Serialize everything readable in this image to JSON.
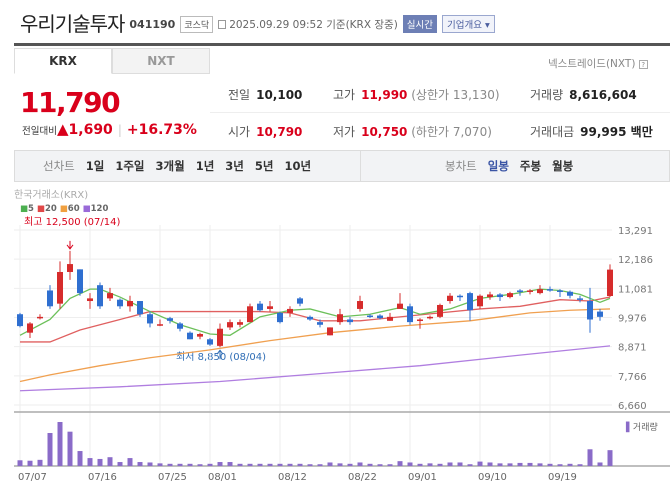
{
  "header": {
    "title": "우리기술투자",
    "code": "041190",
    "market": "코스닥",
    "datetime": "2025.09.29 09:52",
    "basis": "기준(KRX 장중)",
    "realtime": "실시간",
    "company_info": "기업개요 ▾"
  },
  "tabs": [
    {
      "label": "KRX",
      "active": true
    },
    {
      "label": "NXT",
      "active": false
    }
  ],
  "nxt_link": "넥스트레이드(NXT)",
  "quote": {
    "price": "11,790",
    "change_label": "전일대비",
    "change_arrow": "▲",
    "change": "1,690",
    "change_pct": "+16.73%",
    "prev_label": "전일",
    "prev": "10,100",
    "high_label": "고가",
    "high": "11,990",
    "upper_limit": "(상한가 13,130)",
    "volume_label": "거래량",
    "volume": "8,616,604",
    "open_label": "시가",
    "open": "10,790",
    "low_label": "저가",
    "low": "10,750",
    "lower_limit": "(하한가 7,070)",
    "amount_label": "거래대금",
    "amount": "99,995 백만"
  },
  "period_bar": {
    "line_label": "선차트",
    "line_periods": [
      "1일",
      "1주일",
      "3개월",
      "1년",
      "3년",
      "5년",
      "10년"
    ],
    "candle_label": "봉차트",
    "candle_periods": [
      "일봉",
      "주봉",
      "월봉"
    ],
    "active_candle": "일봉"
  },
  "chart_data": {
    "type": "candlestick",
    "source": "한국거래소(KRX)",
    "legend": [
      {
        "name": "5",
        "color": "#4caf50"
      },
      {
        "name": "20",
        "color": "#e04848"
      },
      {
        "name": "60",
        "color": "#f0a040"
      },
      {
        "name": "120",
        "color": "#9a6ad8"
      }
    ],
    "y_ticks": [
      "13,291",
      "12,186",
      "11,081",
      "9,976",
      "8,871",
      "7,766",
      "6,660"
    ],
    "ylim": [
      6660,
      13291
    ],
    "x_ticks": [
      {
        "label": "07/07",
        "i": 0
      },
      {
        "label": "07/16",
        "i": 7
      },
      {
        "label": "07/25",
        "i": 14
      },
      {
        "label": "08/01",
        "i": 19
      },
      {
        "label": "08/12",
        "i": 26
      },
      {
        "label": "08/22",
        "i": 33
      },
      {
        "label": "09/01",
        "i": 39
      },
      {
        "label": "09/10",
        "i": 46
      },
      {
        "label": "09/19",
        "i": 53
      }
    ],
    "high_note": {
      "text": "최고 12,500 (07/14)",
      "i": 5,
      "value": 12500
    },
    "low_note": {
      "text": "최저 8,850 (08/04)",
      "i": 20,
      "value": 8850
    },
    "volume_label": "거래량",
    "candles": [
      [
        10100,
        10150,
        9600,
        9650
      ],
      [
        9400,
        9800,
        9200,
        9750
      ],
      [
        9950,
        10100,
        9900,
        10000
      ],
      [
        11000,
        11200,
        10300,
        10400
      ],
      [
        10500,
        12100,
        10300,
        11700
      ],
      [
        11700,
        12500,
        11400,
        12000
      ],
      [
        11800,
        11800,
        10800,
        10900
      ],
      [
        10600,
        10900,
        10300,
        10700
      ],
      [
        11200,
        11300,
        10300,
        10400
      ],
      [
        10700,
        11100,
        10600,
        10900
      ],
      [
        10650,
        10700,
        10300,
        10400
      ],
      [
        10400,
        10800,
        10200,
        10600
      ],
      [
        10600,
        10600,
        10000,
        10100
      ],
      [
        10100,
        10200,
        9600,
        9750
      ],
      [
        9700,
        9900,
        9650,
        9720
      ],
      [
        9950,
        10000,
        9750,
        9850
      ],
      [
        9750,
        9800,
        9450,
        9550
      ],
      [
        9400,
        9450,
        9150,
        9150
      ],
      [
        9250,
        9400,
        9150,
        9350
      ],
      [
        9150,
        9200,
        8900,
        8950
      ],
      [
        8900,
        9750,
        8850,
        9550
      ],
      [
        9600,
        9900,
        9500,
        9800
      ],
      [
        9700,
        9900,
        9600,
        9800
      ],
      [
        9800,
        10500,
        9800,
        10400
      ],
      [
        10500,
        10600,
        10200,
        10250
      ],
      [
        10300,
        10600,
        10200,
        10400
      ],
      [
        10150,
        10200,
        9750,
        9800
      ],
      [
        10150,
        10400,
        10000,
        10300
      ],
      [
        10700,
        10750,
        10400,
        10500
      ],
      [
        10000,
        10050,
        9850,
        9900
      ],
      [
        9800,
        9900,
        9600,
        9700
      ],
      [
        9300,
        9600,
        9300,
        9600
      ],
      [
        9800,
        10300,
        9700,
        10100
      ],
      [
        9900,
        10000,
        9700,
        9800
      ],
      [
        10300,
        10800,
        10200,
        10600
      ],
      [
        10050,
        10100,
        9950,
        10000
      ],
      [
        10050,
        10100,
        9900,
        9950
      ],
      [
        9850,
        10150,
        9850,
        10000
      ],
      [
        10300,
        10900,
        10300,
        10500
      ],
      [
        10400,
        10500,
        9700,
        9800
      ],
      [
        9850,
        9950,
        9550,
        9900
      ],
      [
        9950,
        10050,
        9900,
        10000
      ],
      [
        10000,
        10500,
        9950,
        10450
      ],
      [
        10600,
        10900,
        10500,
        10800
      ],
      [
        10800,
        10850,
        10600,
        10750
      ],
      [
        10900,
        10950,
        9850,
        10250
      ],
      [
        10400,
        10850,
        10300,
        10800
      ],
      [
        10750,
        10950,
        10650,
        10850
      ],
      [
        10850,
        10900,
        10600,
        10750
      ],
      [
        10750,
        10950,
        10700,
        10900
      ],
      [
        11000,
        11050,
        10800,
        10950
      ],
      [
        10950,
        11050,
        10850,
        11000
      ],
      [
        10900,
        11200,
        10850,
        11050
      ],
      [
        11050,
        11150,
        10950,
        11000
      ],
      [
        11000,
        11050,
        10750,
        10950
      ],
      [
        10950,
        11000,
        10700,
        10800
      ],
      [
        10700,
        10800,
        10550,
        10650
      ],
      [
        10600,
        11100,
        9400,
        9900
      ],
      [
        10200,
        10300,
        9850,
        10000
      ],
      [
        10790,
        11990,
        10750,
        11790
      ]
    ],
    "volumes": [
      1.3,
      1.2,
      1.4,
      7.5,
      10,
      7.8,
      3.4,
      1.8,
      1.6,
      2,
      0.9,
      1.8,
      0.9,
      0.8,
      0.6,
      0.5,
      0.5,
      0.5,
      0.4,
      0.5,
      0.9,
      0.9,
      0.5,
      0.5,
      0.5,
      0.5,
      0.5,
      0.5,
      0.5,
      0.4,
      0.4,
      0.8,
      0.6,
      0.5,
      0.8,
      0.5,
      0.4,
      0.4,
      1.1,
      0.8,
      0.5,
      0.6,
      0.5,
      0.8,
      0.8,
      0.4,
      1,
      0.8,
      0.6,
      0.6,
      0.7,
      0.7,
      0.6,
      0.5,
      0.4,
      0.5,
      0.4,
      3.8,
      0.8,
      3.6
    ],
    "ma": {
      "5": [
        [
          0,
          9300
        ],
        [
          3,
          9900
        ],
        [
          5,
          10700
        ],
        [
          7,
          11050
        ],
        [
          8,
          11050
        ],
        [
          10,
          10750
        ],
        [
          13,
          10200
        ],
        [
          16,
          9700
        ],
        [
          19,
          9350
        ],
        [
          21,
          9300
        ],
        [
          24,
          10000
        ],
        [
          27,
          10250
        ],
        [
          29,
          10300
        ],
        [
          32,
          10000
        ],
        [
          35,
          10100
        ],
        [
          38,
          10350
        ],
        [
          40,
          10100
        ],
        [
          43,
          10300
        ],
        [
          46,
          10700
        ],
        [
          49,
          10850
        ],
        [
          52,
          11050
        ],
        [
          54,
          11000
        ],
        [
          56,
          10850
        ],
        [
          58,
          10550
        ],
        [
          59,
          10700
        ]
      ],
      "20": [
        [
          0,
          9050
        ],
        [
          3,
          9050
        ],
        [
          6,
          9500
        ],
        [
          10,
          9900
        ],
        [
          13,
          10200
        ],
        [
          15,
          10200
        ],
        [
          20,
          10200
        ],
        [
          24,
          10200
        ],
        [
          27,
          10150
        ],
        [
          30,
          9850
        ],
        [
          34,
          9850
        ],
        [
          38,
          10000
        ],
        [
          42,
          10150
        ],
        [
          46,
          10300
        ],
        [
          50,
          10400
        ],
        [
          54,
          10650
        ],
        [
          57,
          10600
        ],
        [
          59,
          10750
        ]
      ],
      "60": [
        [
          0,
          7550
        ],
        [
          3,
          7800
        ],
        [
          8,
          8150
        ],
        [
          13,
          8450
        ],
        [
          19,
          8750
        ],
        [
          25,
          9100
        ],
        [
          31,
          9400
        ],
        [
          38,
          9650
        ],
        [
          45,
          9850
        ],
        [
          51,
          10150
        ],
        [
          55,
          10250
        ],
        [
          59,
          10300
        ]
      ],
      "120": [
        [
          0,
          7200
        ],
        [
          10,
          7350
        ],
        [
          20,
          7550
        ],
        [
          30,
          7850
        ],
        [
          40,
          8150
        ],
        [
          50,
          8550
        ],
        [
          59,
          8900
        ]
      ]
    }
  }
}
